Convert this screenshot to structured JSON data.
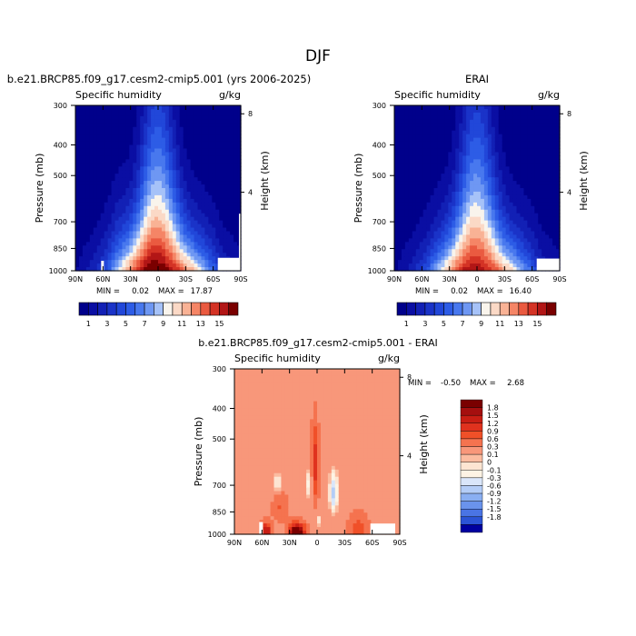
{
  "title": "DJF",
  "chart_data": [
    {
      "type": "heatmap",
      "title": "b.e21.BRCP85.f09_g17.cesm2-cmip5.001 (yrs 2006-2025)",
      "subtitle_left": "Specific humidity",
      "subtitle_right": "g/kg",
      "xlabel": "",
      "ylabel": "Pressure (mb)",
      "ylabel_right": "Height (km)",
      "x_ticks": [
        "90N",
        "60N",
        "30N",
        "0",
        "30S",
        "60S",
        "90S"
      ],
      "x_range": [
        90,
        -90
      ],
      "y_ticks": [
        "300",
        "400",
        "500",
        "700",
        "850",
        "1000"
      ],
      "y_tick_values": [
        300,
        400,
        500,
        700,
        850,
        1000
      ],
      "y_range": [
        1000,
        300
      ],
      "right_ticks": [
        "8",
        "4"
      ],
      "right_tick_values": [
        8,
        4
      ],
      "min_label": "MIN =",
      "min": "0.02",
      "max_label": "MAX =",
      "max": "17.87",
      "peak_value": 17.87,
      "colorbar_labels": [
        "1",
        "3",
        "5",
        "7",
        "9",
        "11",
        "13",
        "15"
      ],
      "colorbar_levels": [
        1,
        2,
        3,
        4,
        5,
        6,
        7,
        8,
        9,
        10,
        11,
        12,
        13,
        14,
        15,
        16
      ],
      "colors": [
        "#00008b",
        "#0a0ea3",
        "#1220b5",
        "#1a33c8",
        "#2147d9",
        "#2d5ce6",
        "#4878ee",
        "#6e97f3",
        "#a6c2f8",
        "#f9f4ec",
        "#fbd9c6",
        "#f9b295",
        "#f58566",
        "#ea5a40",
        "#d43325",
        "#b21616",
        "#7a0000"
      ]
    },
    {
      "type": "heatmap",
      "title": "ERAI",
      "subtitle_left": "Specific humidity",
      "subtitle_right": "g/kg",
      "xlabel": "",
      "ylabel": "Pressure (mb)",
      "ylabel_right": "Height (km)",
      "x_ticks": [
        "90N",
        "60N",
        "30N",
        "0",
        "30S",
        "60S",
        "90S"
      ],
      "x_range": [
        90,
        -90
      ],
      "y_ticks": [
        "300",
        "400",
        "500",
        "700",
        "850",
        "1000"
      ],
      "y_tick_values": [
        300,
        400,
        500,
        700,
        850,
        1000
      ],
      "y_range": [
        1000,
        300
      ],
      "right_ticks": [
        "8",
        "4"
      ],
      "right_tick_values": [
        8,
        4
      ],
      "min_label": "MIN =",
      "min": "0.02",
      "max_label": "MAX =",
      "max": "16.40",
      "peak_value": 16.4,
      "colorbar_labels": [
        "1",
        "3",
        "5",
        "7",
        "9",
        "11",
        "13",
        "15"
      ],
      "colorbar_levels": [
        1,
        2,
        3,
        4,
        5,
        6,
        7,
        8,
        9,
        10,
        11,
        12,
        13,
        14,
        15,
        16
      ],
      "colors": [
        "#00008b",
        "#0a0ea3",
        "#1220b5",
        "#1a33c8",
        "#2147d9",
        "#2d5ce6",
        "#4878ee",
        "#6e97f3",
        "#a6c2f8",
        "#f9f4ec",
        "#fbd9c6",
        "#f9b295",
        "#f58566",
        "#ea5a40",
        "#d43325",
        "#b21616",
        "#7a0000"
      ]
    },
    {
      "type": "heatmap",
      "title": "b.e21.BRCP85.f09_g17.cesm2-cmip5.001 - ERAI",
      "subtitle_left": "Specific humidity",
      "subtitle_right": "g/kg",
      "xlabel": "",
      "ylabel": "Pressure (mb)",
      "ylabel_right": "Height (km)",
      "x_ticks": [
        "90N",
        "60N",
        "30N",
        "0",
        "30S",
        "60S",
        "90S"
      ],
      "x_range": [
        90,
        -90
      ],
      "y_ticks": [
        "300",
        "400",
        "500",
        "700",
        "850",
        "1000"
      ],
      "y_tick_values": [
        300,
        400,
        500,
        700,
        850,
        1000
      ],
      "y_range": [
        1000,
        300
      ],
      "right_ticks": [
        "8",
        "4"
      ],
      "right_tick_values": [
        8,
        4
      ],
      "min_label": "MIN =",
      "min": "-0.50",
      "max_label": "MAX =",
      "max": "2.68",
      "colorbar_labels": [
        "1.8",
        "1.5",
        "1.2",
        "0.9",
        "0.6",
        "0.3",
        "0.1",
        "0",
        "-0.1",
        "-0.3",
        "-0.6",
        "-0.9",
        "-1.2",
        "-1.5",
        "-1.8"
      ],
      "colorbar_levels": [
        1.8,
        1.5,
        1.2,
        0.9,
        0.6,
        0.3,
        0.1,
        0,
        -0.1,
        -0.3,
        -0.6,
        -0.9,
        -1.2,
        -1.5,
        -1.8
      ],
      "colors": [
        "#7a0000",
        "#a50f0f",
        "#c81e14",
        "#e0321e",
        "#f05028",
        "#f5734f",
        "#f8977a",
        "#fbbca0",
        "#fde5d2",
        "#fdf3e4",
        "#dae6fa",
        "#b4cdf7",
        "#8aaff2",
        "#6a93ec",
        "#4a74e4",
        "#2c54d6",
        "#0000a0"
      ]
    }
  ]
}
